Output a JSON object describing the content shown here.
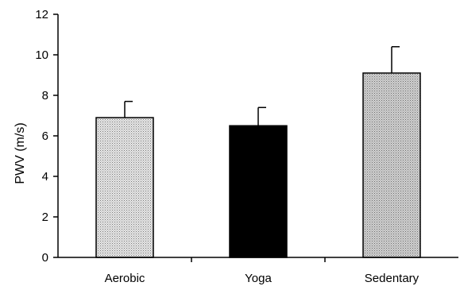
{
  "chart_data": {
    "type": "bar",
    "categories": [
      "Aerobic",
      "Yoga",
      "Sedentary"
    ],
    "values": [
      6.9,
      6.5,
      9.1
    ],
    "errors": [
      0.8,
      0.9,
      1.3
    ],
    "bar_fills": [
      "pattern-light-dots",
      "#000000",
      "pattern-gray-dots"
    ],
    "title": "",
    "xlabel": "",
    "ylabel": "PWV (m/s)",
    "ylim": [
      0,
      12
    ],
    "yticks": [
      "0",
      "2",
      "4",
      "6",
      "8",
      "10",
      "12"
    ],
    "grid": false,
    "legend": "none"
  }
}
